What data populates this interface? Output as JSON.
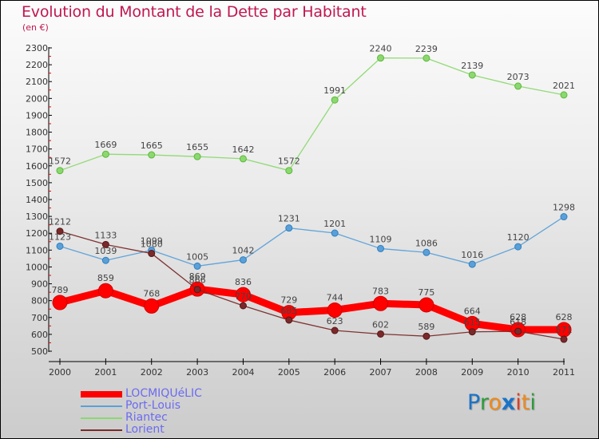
{
  "title": "Evolution du Montant de la Dette par Habitant",
  "subtitle": "(en €)",
  "logo": {
    "letters": [
      {
        "ch": "P",
        "color": "#1a73c8"
      },
      {
        "ch": "r",
        "color": "#2e9b3a"
      },
      {
        "ch": "o",
        "color": "#f08a1c"
      },
      {
        "ch": "x",
        "color": "#1a73c8"
      },
      {
        "ch": "i",
        "color": "#e23b1f"
      },
      {
        "ch": "t",
        "color": "#f08a1c"
      },
      {
        "ch": "i",
        "color": "#2e9b3a"
      }
    ],
    "text": "Proxiti"
  },
  "chart_data": {
    "type": "line",
    "title": "Evolution du Montant de la Dette par Habitant",
    "subtitle": "(en €)",
    "xlabel": "",
    "ylabel": "",
    "x": [
      "2000",
      "2001",
      "2002",
      "2003",
      "2004",
      "2005",
      "2006",
      "2007",
      "2008",
      "2009",
      "2010",
      "2011"
    ],
    "ylim": [
      500,
      2300
    ],
    "yticks": [
      500,
      600,
      700,
      800,
      900,
      1000,
      1100,
      1200,
      1300,
      1400,
      1500,
      1600,
      1700,
      1800,
      1900,
      2000,
      2100,
      2200,
      2300
    ],
    "grid": false,
    "legend_position": "bottom-left",
    "series": [
      {
        "name": "LOCMIQUéLIC",
        "color": "#ff0000",
        "emphasis": true,
        "values": [
          789,
          859,
          768,
          869,
          836,
          729,
          744,
          783,
          775,
          664,
          628,
          628
        ]
      },
      {
        "name": "Port-Louis",
        "color": "#5aa0d8",
        "emphasis": false,
        "values": [
          1123,
          1039,
          1099,
          1005,
          1042,
          1231,
          1201,
          1109,
          1086,
          1016,
          1120,
          1298
        ]
      },
      {
        "name": "Riantec",
        "color": "#8cd870",
        "emphasis": false,
        "values": [
          1572,
          1669,
          1665,
          1655,
          1642,
          1572,
          1991,
          2240,
          2239,
          2139,
          2073,
          2021
        ]
      },
      {
        "name": "Lorient",
        "color": "#7a2a2a",
        "emphasis": false,
        "values": [
          1212,
          1133,
          1080,
          866,
          770,
          685,
          623,
          602,
          589,
          615,
          618,
          571
        ]
      }
    ]
  }
}
